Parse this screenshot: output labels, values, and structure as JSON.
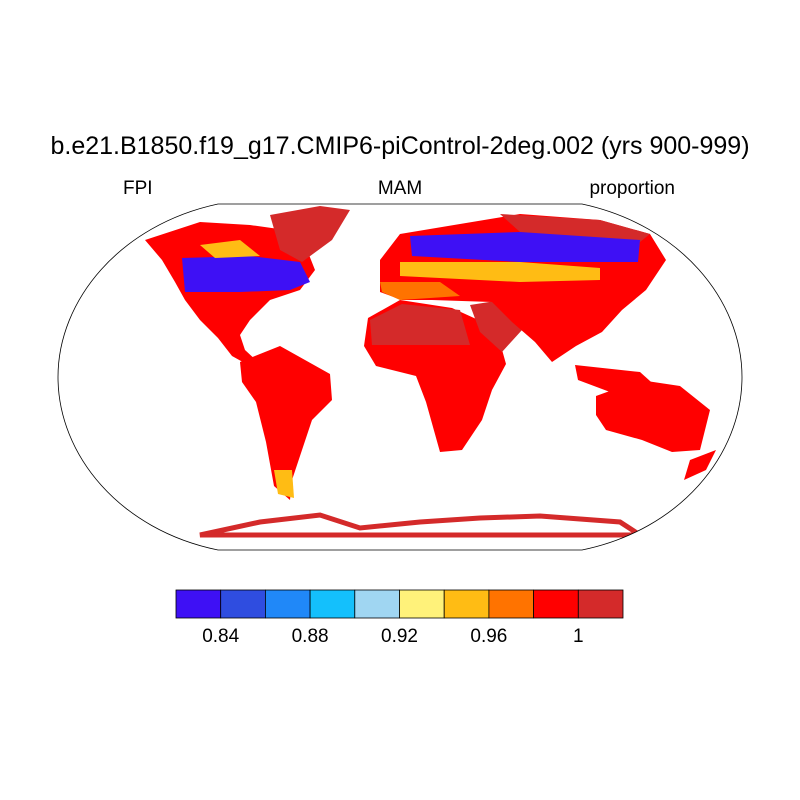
{
  "title": "b.e21.B1850.f19_g17.CMIP6-piControl-2deg.002 (yrs 900-999)",
  "left_string": "FPI",
  "center_string": "MAM",
  "right_string": "proportion",
  "map": {
    "projection": "Robinson",
    "field_colors": {
      "high": "#d42a2a",
      "main": "#ff0000",
      "orange": "#ff7300",
      "amber": "#ffbc14",
      "yellow": "#fff27a",
      "low_blue": "#3e10f5"
    }
  },
  "colorbar": {
    "colors": [
      "#3e10f5",
      "#2f4de0",
      "#2088f8",
      "#14c0fc",
      "#a0d6f2",
      "#fff27a",
      "#ffbc14",
      "#ff7300",
      "#ff0000",
      "#d42a2a"
    ],
    "labels": [
      "0.84",
      "0.88",
      "0.92",
      "0.96",
      "1"
    ]
  }
}
